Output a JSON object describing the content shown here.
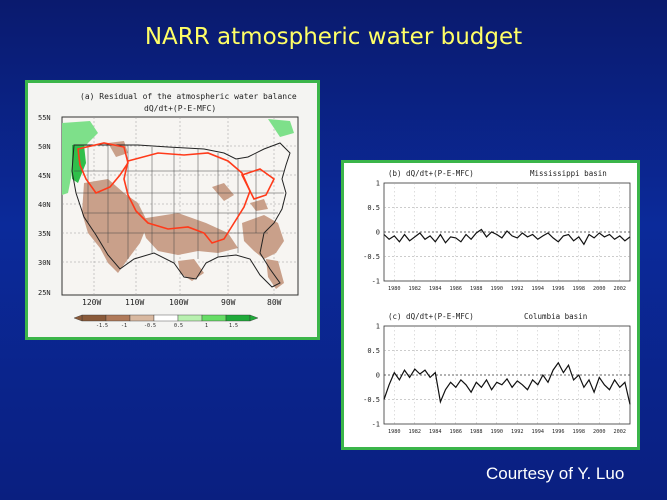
{
  "slide": {
    "title": "NARR atmospheric water budget",
    "credit": "Courtesy of Y. Luo"
  },
  "map": {
    "title": "(a) Residual of the atmospheric water balance",
    "subtitle": "dQ/dt+(P-E-MFC)",
    "lat_labels": [
      "55N",
      "50N",
      "45N",
      "40N",
      "35N",
      "30N",
      "25N"
    ],
    "lon_labels": [
      "120W",
      "110W",
      "100W",
      "90W",
      "80W"
    ],
    "colorbar_labels": [
      "-1.5",
      "-1",
      "-0.5",
      "0.5",
      "1",
      "1.5"
    ],
    "colorbar_colors": [
      "#8a5a3a",
      "#b07a5a",
      "#d8b8a0",
      "#ffffff",
      "#b8f0b0",
      "#66dd66",
      "#1faa3a"
    ]
  },
  "chart_data": [
    {
      "type": "line",
      "title": "(b) dQ/dt+(P-E-MFC)",
      "annotation": "Mississippi basin",
      "xlabel": "",
      "ylabel": "",
      "xlim": [
        1979,
        2003
      ],
      "ylim": [
        -1,
        1
      ],
      "yticks": [
        "1",
        "0.5",
        "0",
        "-0.5",
        "-1"
      ],
      "xticks": [
        "1980",
        "1982",
        "1984",
        "1986",
        "1988",
        "1990",
        "1992",
        "1994",
        "1996",
        "1998",
        "2000",
        "2002"
      ],
      "grid": true,
      "series": [
        {
          "x": [
            1979,
            1979.5,
            1980,
            1980.5,
            1981,
            1981.5,
            1982,
            1982.5,
            1983,
            1983.5,
            1984,
            1984.5,
            1985,
            1985.5,
            1986,
            1986.5,
            1987,
            1987.5,
            1988,
            1988.5,
            1989,
            1989.5,
            1990,
            1990.5,
            1991,
            1991.5,
            1992,
            1992.5,
            1993,
            1993.5,
            1994,
            1994.5,
            1995,
            1995.5,
            1996,
            1996.5,
            1997,
            1997.5,
            1998,
            1998.5,
            1999,
            1999.5,
            2000,
            2000.5,
            2001,
            2001.5,
            2002,
            2002.5,
            2003
          ],
          "values": [
            -0.05,
            -0.15,
            -0.08,
            -0.2,
            -0.05,
            -0.18,
            -0.1,
            -0.02,
            -0.15,
            -0.08,
            -0.2,
            -0.05,
            -0.22,
            -0.1,
            -0.12,
            -0.2,
            -0.05,
            -0.15,
            -0.02,
            0.05,
            -0.1,
            0.0,
            -0.05,
            -0.12,
            0.02,
            -0.08,
            -0.12,
            -0.02,
            -0.1,
            -0.05,
            -0.15,
            -0.08,
            -0.02,
            -0.12,
            -0.2,
            -0.08,
            -0.05,
            -0.18,
            -0.1,
            -0.25,
            -0.05,
            -0.12,
            -0.02,
            -0.1,
            -0.05,
            -0.15,
            -0.08,
            -0.18,
            -0.1
          ]
        }
      ]
    },
    {
      "type": "line",
      "title": "(c) dQ/dt+(P-E-MFC)",
      "annotation": "Columbia basin",
      "xlabel": "",
      "ylabel": "",
      "xlim": [
        1979,
        2003
      ],
      "ylim": [
        -1,
        1
      ],
      "yticks": [
        "1",
        "0.5",
        "0",
        "-0.5",
        "-1"
      ],
      "xticks": [
        "1980",
        "1982",
        "1984",
        "1986",
        "1988",
        "1990",
        "1992",
        "1994",
        "1996",
        "1998",
        "2000",
        "2002"
      ],
      "grid": true,
      "series": [
        {
          "x": [
            1979,
            1979.5,
            1980,
            1980.5,
            1981,
            1981.5,
            1982,
            1982.5,
            1983,
            1983.5,
            1984,
            1984.5,
            1985,
            1985.5,
            1986,
            1986.5,
            1987,
            1987.5,
            1988,
            1988.5,
            1989,
            1989.5,
            1990,
            1990.5,
            1991,
            1991.5,
            1992,
            1992.5,
            1993,
            1993.5,
            1994,
            1994.5,
            1995,
            1995.5,
            1996,
            1996.5,
            1997,
            1997.5,
            1998,
            1998.5,
            1999,
            1999.5,
            2000,
            2000.5,
            2001,
            2001.5,
            2002,
            2002.5,
            2003
          ],
          "values": [
            -0.5,
            -0.2,
            0.05,
            -0.1,
            0.1,
            -0.05,
            0.12,
            0.02,
            0.1,
            -0.05,
            0.05,
            -0.55,
            -0.3,
            -0.15,
            -0.25,
            -0.1,
            -0.2,
            -0.35,
            -0.15,
            -0.25,
            -0.1,
            -0.3,
            -0.15,
            -0.2,
            -0.08,
            -0.25,
            -0.12,
            -0.2,
            -0.3,
            -0.1,
            -0.2,
            0.0,
            -0.15,
            0.1,
            0.25,
            0.05,
            0.2,
            -0.1,
            0.0,
            -0.25,
            -0.1,
            -0.35,
            -0.05,
            -0.2,
            -0.3,
            -0.1,
            -0.25,
            -0.15,
            -0.6
          ]
        }
      ]
    }
  ]
}
